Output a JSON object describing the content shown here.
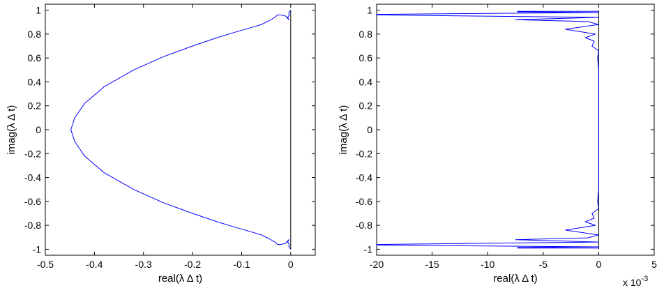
{
  "chart_data": [
    {
      "type": "line",
      "xlabel": "real(λ Δ t)",
      "ylabel": "imag(λ Δ t)",
      "xlim": [
        -0.5,
        0.05
      ],
      "ylim": [
        -1.05,
        1.05
      ],
      "xticks": [
        -0.5,
        -0.4,
        -0.3,
        -0.2,
        -0.1,
        0
      ],
      "xtick_labels": [
        "-0.5",
        "-0.4",
        "-0.3",
        "-0.2",
        "-0.1",
        "0"
      ],
      "yticks": [
        1,
        0.8,
        0.6,
        0.4,
        0.2,
        0,
        -0.2,
        -0.4,
        -0.6,
        -0.8,
        -1
      ],
      "ytick_labels": [
        "1",
        "0.8",
        "0.6",
        "0.4",
        "0.2",
        "0",
        "-0.2",
        "-0.4",
        "-0.6",
        "-0.8",
        "-1"
      ],
      "grid": false,
      "series": [
        {
          "color": "#0000ff",
          "x": [
            0,
            -0.002,
            -0.004,
            -0.003,
            -0.006,
            -0.004,
            -0.01,
            -0.02,
            -0.027,
            -0.032,
            -0.045,
            -0.06,
            -0.08,
            -0.11,
            -0.15,
            -0.2,
            -0.26,
            -0.32,
            -0.38,
            -0.42,
            -0.44,
            -0.448,
            -0.44,
            -0.42,
            -0.38,
            -0.32,
            -0.26,
            -0.2,
            -0.15,
            -0.11,
            -0.08,
            -0.06,
            -0.045,
            -0.032,
            -0.027,
            -0.02,
            -0.01,
            -0.004,
            -0.006,
            -0.003,
            -0.004,
            -0.002,
            0
          ],
          "y": [
            1.0,
            0.99,
            0.975,
            0.96,
            0.94,
            0.92,
            0.95,
            0.96,
            0.96,
            0.94,
            0.91,
            0.88,
            0.855,
            0.82,
            0.77,
            0.7,
            0.61,
            0.5,
            0.36,
            0.22,
            0.1,
            0,
            -0.1,
            -0.22,
            -0.36,
            -0.5,
            -0.61,
            -0.7,
            -0.77,
            -0.82,
            -0.855,
            -0.88,
            -0.91,
            -0.94,
            -0.96,
            -0.96,
            -0.95,
            -0.92,
            -0.94,
            -0.96,
            -0.975,
            -0.99,
            -1.0
          ]
        }
      ]
    },
    {
      "type": "line",
      "xlabel": "real(λ Δ t)",
      "ylabel": "imag(λ Δ t)",
      "multiplier": "x 10",
      "multiplier_exponent": "-3",
      "xlim": [
        -20,
        5
      ],
      "ylim": [
        -1.05,
        1.05
      ],
      "xticks": [
        -20,
        -15,
        -10,
        -5,
        0,
        5
      ],
      "xtick_labels": [
        "-20",
        "-15",
        "-10",
        "-5",
        "0",
        "5"
      ],
      "yticks": [
        1,
        0.8,
        0.6,
        0.4,
        0.2,
        0,
        -0.2,
        -0.4,
        -0.6,
        -0.8,
        -1
      ],
      "ytick_labels": [
        "1",
        "0.8",
        "0.6",
        "0.4",
        "0.2",
        "0",
        "-0.2",
        "-0.4",
        "-0.6",
        "-0.8",
        "-1"
      ],
      "grid": false,
      "series": [
        {
          "color": "#0000ff",
          "x": [
            0,
            -7.3,
            -7.3,
            0,
            -20,
            -20,
            -20,
            0,
            -7.5,
            -1,
            0,
            -3,
            -0.3,
            -1.2,
            -0.4,
            -0.6,
            0,
            -0.1,
            0,
            0,
            -0.1,
            0,
            -0.6,
            -0.4,
            -1.2,
            -0.3,
            -3,
            0,
            -1,
            -7.5,
            0,
            -20,
            -20,
            -20,
            0,
            -7.3,
            -7.3,
            0
          ],
          "y": [
            0.99,
            0.99,
            0.985,
            0.98,
            0.965,
            0.963,
            0.96,
            0.94,
            0.92,
            0.905,
            0.88,
            0.84,
            0.8,
            0.77,
            0.74,
            0.7,
            0.66,
            0.6,
            0.5,
            -0.5,
            -0.6,
            -0.66,
            -0.7,
            -0.74,
            -0.77,
            -0.8,
            -0.84,
            -0.88,
            -0.905,
            -0.92,
            -0.94,
            -0.96,
            -0.963,
            -0.965,
            -0.98,
            -0.985,
            -0.99,
            -0.99
          ]
        }
      ]
    }
  ]
}
